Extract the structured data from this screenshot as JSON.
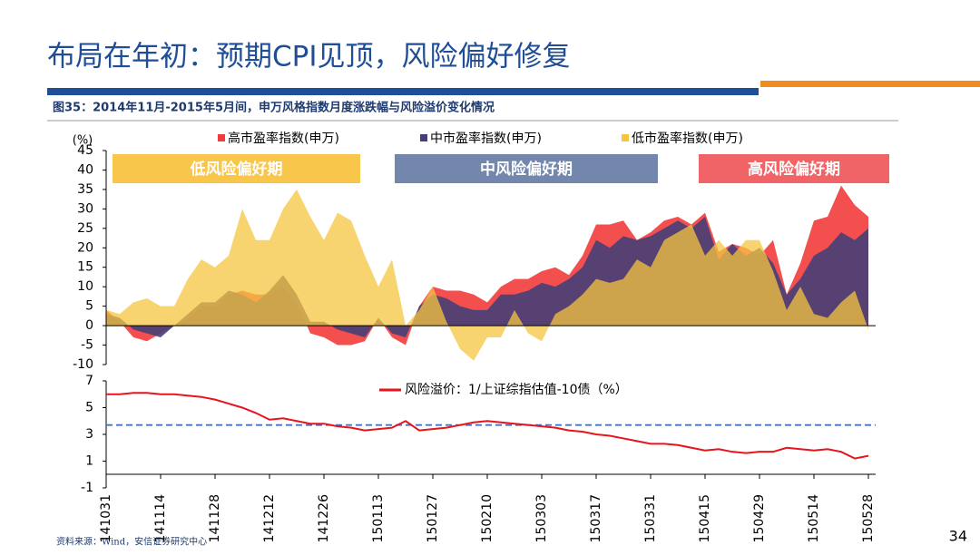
{
  "header": {
    "title": "布局在年初：预期CPI见顶，风险偏好修复",
    "caption": "图35：2014年11月-2015年5月间，申万风格指数月度涨跌幅与风险溢价变化情况"
  },
  "chart_data": [
    {
      "type": "area",
      "y_label": "(%)",
      "ylim": [
        -10,
        45
      ],
      "yticks": [
        -10,
        -5,
        0,
        5,
        10,
        15,
        20,
        25,
        30,
        35,
        40,
        45
      ],
      "periods": [
        {
          "text": "低风险偏好期",
          "color": "#f7c64a"
        },
        {
          "text": "中风险偏好期",
          "color": "#7287ab"
        },
        {
          "text": "高风险偏好期",
          "color": "#f06468"
        }
      ],
      "series": [
        {
          "name": "高市盈率指数(申万)",
          "color": "#f23c3c",
          "values": [
            4,
            1,
            -3,
            -4,
            -2,
            0,
            2,
            5,
            5,
            8,
            9,
            8,
            8,
            10,
            6,
            -2,
            -3,
            -5,
            -5,
            -4,
            2,
            -3,
            -5,
            5,
            10,
            9,
            9,
            8,
            6,
            10,
            12,
            12,
            14,
            15,
            13,
            18,
            26,
            26,
            27,
            22,
            24,
            27,
            28,
            26,
            29,
            19,
            21,
            20,
            18,
            22,
            8,
            16,
            27,
            28,
            36,
            31,
            28
          ]
        },
        {
          "name": "中市盈率指数(申万)",
          "color": "#453f75",
          "values": [
            3,
            2,
            -1,
            -2,
            -3,
            0,
            3,
            6,
            6,
            9,
            8,
            6,
            9,
            13,
            8,
            1,
            1,
            -1,
            -2,
            -3,
            2,
            -2,
            -3,
            5,
            8,
            7,
            5,
            4,
            4,
            8,
            8,
            9,
            11,
            10,
            12,
            15,
            22,
            20,
            23,
            22,
            23,
            25,
            27,
            25,
            28,
            17,
            21,
            18,
            20,
            16,
            8,
            12,
            18,
            20,
            24,
            22,
            25
          ]
        },
        {
          "name": "低市盈率指数(申万)",
          "color": "#f5c540",
          "values": [
            4,
            3,
            6,
            7,
            5,
            5,
            12,
            17,
            15,
            18,
            30,
            22,
            22,
            30,
            35,
            28,
            22,
            29,
            27,
            18,
            10,
            17,
            0,
            4,
            10,
            1,
            -6,
            -9,
            -3,
            -3,
            4,
            -2,
            -4,
            3,
            5,
            8,
            12,
            11,
            12,
            17,
            15,
            22,
            24,
            26,
            18,
            22,
            18,
            22,
            22,
            14,
            4,
            10,
            3,
            2,
            6,
            9,
            -1
          ]
        }
      ]
    },
    {
      "type": "line",
      "categories": [
        "141031",
        null,
        null,
        null,
        "141114",
        null,
        null,
        null,
        "141128",
        null,
        null,
        null,
        "141212",
        null,
        null,
        null,
        "141226",
        null,
        null,
        null,
        "150113",
        null,
        null,
        null,
        "150127",
        null,
        null,
        null,
        "150210",
        null,
        null,
        null,
        "150303",
        null,
        null,
        null,
        "150317",
        null,
        null,
        null,
        "150331",
        null,
        null,
        null,
        "150415",
        null,
        null,
        null,
        "150429",
        null,
        null,
        null,
        "150514",
        null,
        null,
        null,
        "150528"
      ],
      "ylim": [
        -1,
        7
      ],
      "yticks": [
        -1,
        1,
        3,
        5,
        7
      ],
      "reference": 3.7,
      "reference_color": "#4472c4",
      "series": [
        {
          "name": "风险溢价：1/上证综指估值-10债（%）",
          "color": "#e8141c",
          "values": [
            6.0,
            6.0,
            6.1,
            6.1,
            6.0,
            6.0,
            5.9,
            5.8,
            5.6,
            5.3,
            5.0,
            4.6,
            4.1,
            4.2,
            4.0,
            3.8,
            3.8,
            3.6,
            3.5,
            3.3,
            3.4,
            3.5,
            4.0,
            3.3,
            3.4,
            3.5,
            3.7,
            3.9,
            4.0,
            3.9,
            3.8,
            3.7,
            3.6,
            3.5,
            3.3,
            3.2,
            3.0,
            2.9,
            2.7,
            2.5,
            2.3,
            2.3,
            2.2,
            2.0,
            1.8,
            1.9,
            1.7,
            1.6,
            1.7,
            1.7,
            2.0,
            1.9,
            1.8,
            1.9,
            1.7,
            1.2,
            1.4
          ]
        }
      ]
    }
  ],
  "footer": {
    "source": "资料来源：Wind，安信证券研究中心",
    "page": "34"
  }
}
